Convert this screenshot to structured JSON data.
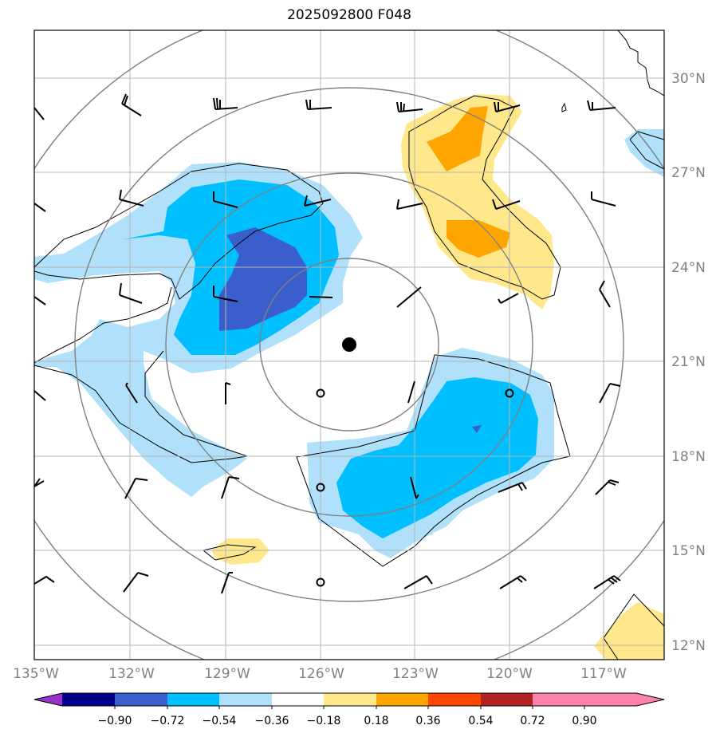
{
  "title": "2025092800 F048",
  "map": {
    "lat_labels": [
      "30°N",
      "27°N",
      "24°N",
      "21°N",
      "18°N",
      "15°N",
      "12°N"
    ],
    "lon_labels": [
      "135°W",
      "132°W",
      "129°W",
      "126°W",
      "123°W",
      "120°W",
      "117°W"
    ],
    "storm_center": {
      "lat": 21.5,
      "lon": -125.0
    }
  },
  "colorbar": {
    "levels": [
      "−0.90",
      "−0.72",
      "−0.54",
      "−0.36",
      "−0.18",
      "0.18",
      "0.36",
      "0.54",
      "0.72",
      "0.90"
    ],
    "colors": [
      "#9932cc",
      "#00008b",
      "#3a5fcd",
      "#00bfff",
      "#b0e0fa",
      "#ffffff",
      "#ffe88c",
      "#ffa500",
      "#ff4500",
      "#b22222",
      "#ff82ab"
    ]
  }
}
